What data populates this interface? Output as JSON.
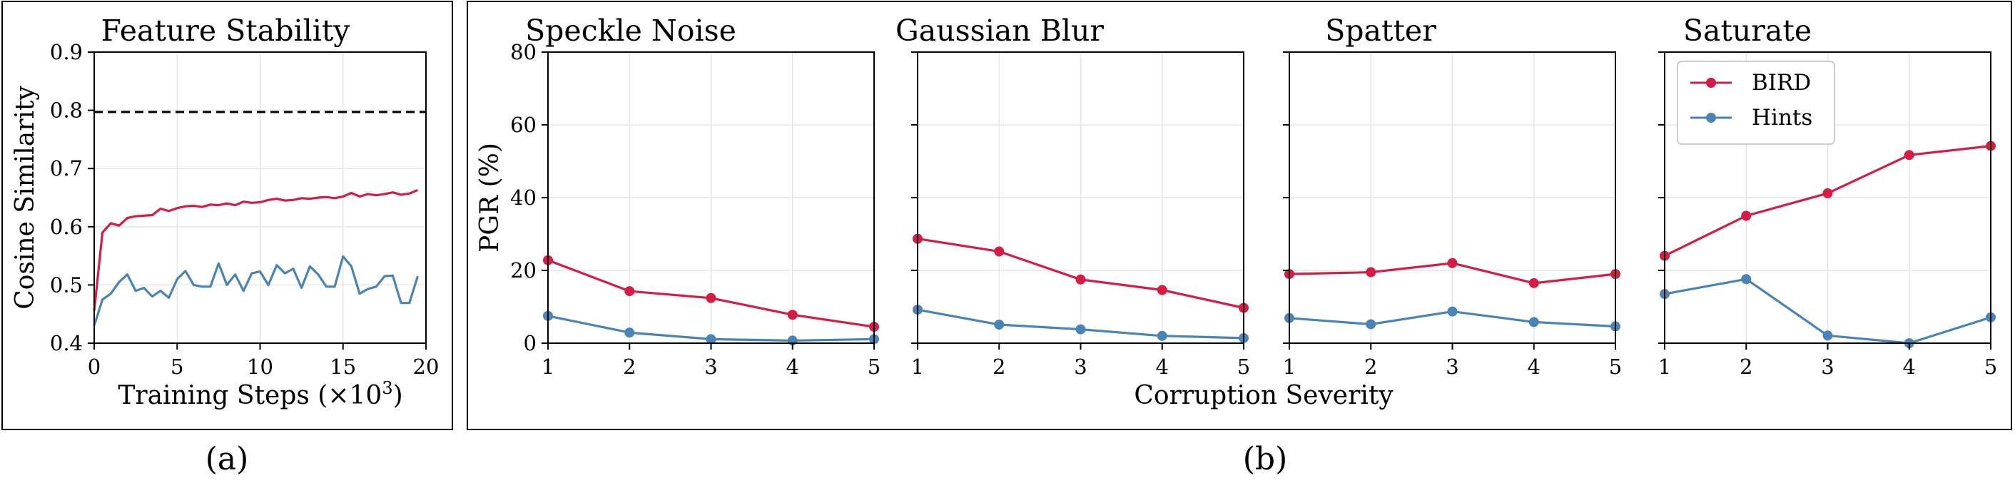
{
  "colors": {
    "bird": "#d41c44",
    "hints": "#4a84b4",
    "ref": "#000000"
  },
  "captions": {
    "a": "(a)",
    "b": "(b)"
  },
  "chart_data": [
    {
      "type": "line",
      "title": "Feature Stability",
      "xlabel": "Training Steps (×10",
      "xlabel_sup": "3",
      "xlabel_close": ")",
      "ylabel": "Cosine Similarity",
      "xlim": [
        0,
        20
      ],
      "ylim": [
        0.4,
        0.9
      ],
      "xticks": [
        0,
        5,
        10,
        15,
        20
      ],
      "yticks": [
        0.4,
        0.5,
        0.6,
        0.7,
        0.8,
        0.9
      ],
      "ytick_labels": [
        "0.4",
        "0.5",
        "0.6",
        "0.7",
        "0.8",
        "0.9"
      ],
      "grid": true,
      "reference_line": 0.797,
      "series": [
        {
          "color": "#d41c44",
          "x": [
            0,
            0.5,
            1,
            1.5,
            2,
            2.5,
            3,
            3.5,
            4,
            4.5,
            5,
            5.5,
            6,
            6.5,
            7,
            7.5,
            8,
            8.5,
            9,
            9.5,
            10,
            10.5,
            11,
            11.5,
            12,
            12.5,
            13,
            13.5,
            14,
            14.5,
            15,
            15.5,
            16,
            16.5,
            17,
            17.5,
            18,
            18.5,
            19,
            19.5
          ],
          "values": [
            0.455,
            0.59,
            0.606,
            0.602,
            0.615,
            0.618,
            0.619,
            0.62,
            0.631,
            0.627,
            0.632,
            0.635,
            0.636,
            0.634,
            0.638,
            0.637,
            0.64,
            0.637,
            0.643,
            0.641,
            0.642,
            0.646,
            0.648,
            0.645,
            0.646,
            0.649,
            0.648,
            0.65,
            0.651,
            0.649,
            0.652,
            0.658,
            0.652,
            0.656,
            0.654,
            0.656,
            0.659,
            0.655,
            0.657,
            0.663
          ]
        },
        {
          "color": "#4a84b4",
          "x": [
            0,
            0.5,
            1,
            1.5,
            2,
            2.5,
            3,
            3.5,
            4,
            4.5,
            5,
            5.5,
            6,
            6.5,
            7,
            7.5,
            8,
            8.5,
            9,
            9.5,
            10,
            10.5,
            11,
            11.5,
            12,
            12.5,
            13,
            13.5,
            14,
            14.5,
            15,
            15.5,
            16,
            16.5,
            17,
            17.5,
            18,
            18.5,
            19,
            19.5
          ],
          "values": [
            0.43,
            0.475,
            0.485,
            0.505,
            0.518,
            0.49,
            0.495,
            0.48,
            0.49,
            0.478,
            0.51,
            0.524,
            0.5,
            0.497,
            0.497,
            0.537,
            0.5,
            0.518,
            0.49,
            0.52,
            0.523,
            0.5,
            0.534,
            0.52,
            0.528,
            0.495,
            0.532,
            0.518,
            0.497,
            0.497,
            0.549,
            0.532,
            0.485,
            0.493,
            0.497,
            0.515,
            0.516,
            0.469,
            0.469,
            0.515
          ]
        }
      ]
    },
    {
      "type": "line",
      "title": "Speckle Noise",
      "x": [
        1,
        2,
        3,
        4,
        5
      ],
      "ylabel": "PGR (%)",
      "ylim": [
        0,
        80
      ],
      "yticks": [
        0,
        20,
        40,
        60,
        80
      ],
      "grid": true,
      "series": [
        {
          "name": "BIRD",
          "color": "#d41c44",
          "values": [
            22.8,
            14.3,
            12.4,
            7.8,
            4.5
          ]
        },
        {
          "name": "Hints",
          "color": "#4a84b4",
          "values": [
            7.5,
            2.9,
            1.1,
            0.7,
            1.1
          ]
        }
      ]
    },
    {
      "type": "line",
      "title": "Gaussian Blur",
      "x": [
        1,
        2,
        3,
        4,
        5
      ],
      "ylim": [
        0,
        80
      ],
      "grid": true,
      "series": [
        {
          "name": "BIRD",
          "color": "#d41c44",
          "values": [
            28.7,
            25.2,
            17.5,
            14.6,
            9.7
          ]
        },
        {
          "name": "Hints",
          "color": "#4a84b4",
          "values": [
            9.2,
            5.1,
            3.8,
            2.0,
            1.4
          ]
        }
      ]
    },
    {
      "type": "line",
      "title": "Spatter",
      "x": [
        1,
        2,
        3,
        4,
        5
      ],
      "xlabel": "Corruption Severity",
      "ylim": [
        0,
        80
      ],
      "grid": true,
      "series": [
        {
          "name": "BIRD",
          "color": "#d41c44",
          "values": [
            19.0,
            19.5,
            22.0,
            16.5,
            19.0
          ]
        },
        {
          "name": "Hints",
          "color": "#4a84b4",
          "values": [
            6.9,
            5.2,
            8.7,
            5.8,
            4.6
          ]
        }
      ]
    },
    {
      "type": "line",
      "title": "Saturate",
      "x": [
        1,
        2,
        3,
        4,
        5
      ],
      "ylim": [
        0,
        80
      ],
      "grid": true,
      "legend": "top-left",
      "legend_entries": [
        "BIRD",
        "Hints"
      ],
      "series": [
        {
          "name": "BIRD",
          "color": "#d41c44",
          "values": [
            24.0,
            35.0,
            41.2,
            51.7,
            54.2
          ]
        },
        {
          "name": "Hints",
          "color": "#4a84b4",
          "values": [
            13.5,
            17.6,
            2.1,
            0.0,
            7.1
          ]
        }
      ]
    }
  ]
}
